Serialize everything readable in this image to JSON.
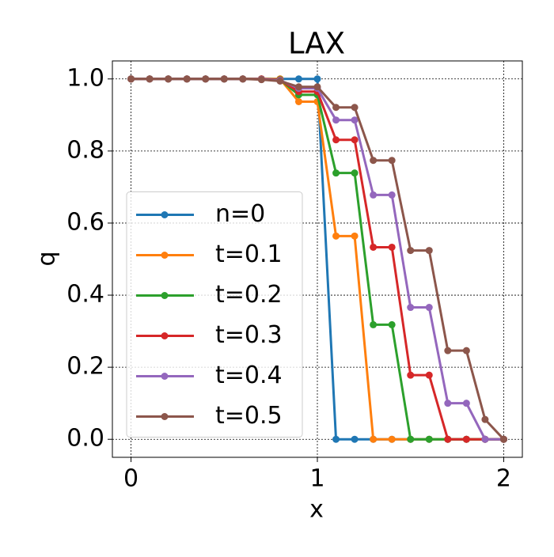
{
  "chart_data": {
    "type": "line",
    "title": "LAX",
    "x_label": "x",
    "y_label": "q",
    "x": [
      0,
      0.1,
      0.2,
      0.3,
      0.4,
      0.5,
      0.6,
      0.7,
      0.8,
      0.9,
      1.0,
      1.1,
      1.2,
      1.3,
      1.4,
      1.5,
      1.6,
      1.7,
      1.8,
      1.9,
      2.0
    ],
    "series": [
      {
        "name": "n=0",
        "color": "#1f77b4",
        "values": [
          1,
          1,
          1,
          1,
          1,
          1,
          1,
          1,
          1,
          1,
          1,
          0,
          0,
          0,
          0,
          0,
          0,
          0,
          0,
          0,
          0
        ]
      },
      {
        "name": "t=0.1",
        "color": "#ff7f0e",
        "values": [
          1,
          1,
          1,
          1,
          1,
          1,
          1,
          1,
          1,
          0.937,
          0.937,
          0.564,
          0.564,
          0,
          0,
          0,
          0,
          0,
          0,
          0,
          0
        ]
      },
      {
        "name": "t=0.2",
        "color": "#2ca02c",
        "values": [
          1,
          1,
          1,
          1,
          1,
          1,
          1,
          1,
          0.998,
          0.956,
          0.956,
          0.739,
          0.739,
          0.318,
          0.318,
          0,
          0,
          0,
          0,
          0,
          0
        ]
      },
      {
        "name": "t=0.3",
        "color": "#d62728",
        "values": [
          1,
          1,
          1,
          1,
          1,
          1,
          1,
          1,
          0.997,
          0.965,
          0.965,
          0.831,
          0.831,
          0.533,
          0.533,
          0.178,
          0.178,
          0,
          0,
          0,
          0
        ]
      },
      {
        "name": "t=0.4",
        "color": "#9467bd",
        "values": [
          1,
          1,
          1,
          1,
          1,
          1,
          1,
          0.999,
          0.996,
          0.974,
          0.974,
          0.886,
          0.886,
          0.678,
          0.678,
          0.366,
          0.366,
          0.1,
          0.1,
          0,
          0
        ]
      },
      {
        "name": "t=0.5",
        "color": "#8c564b",
        "values": [
          1,
          1,
          1,
          1,
          1,
          1,
          1,
          0.998,
          0.994,
          0.978,
          0.978,
          0.921,
          0.921,
          0.774,
          0.774,
          0.524,
          0.524,
          0.246,
          0.246,
          0.055,
          0
        ]
      }
    ],
    "xlim": [
      -0.1,
      2.1
    ],
    "ylim": [
      -0.05,
      1.05
    ],
    "xticks": [
      0,
      1,
      2
    ],
    "yticks": [
      {
        "value": 0,
        "label": "0.0"
      },
      0.2,
      0.4,
      0.6,
      0.8,
      {
        "value": 1,
        "label": "1.0"
      }
    ],
    "grid": true,
    "legend": "center left"
  }
}
